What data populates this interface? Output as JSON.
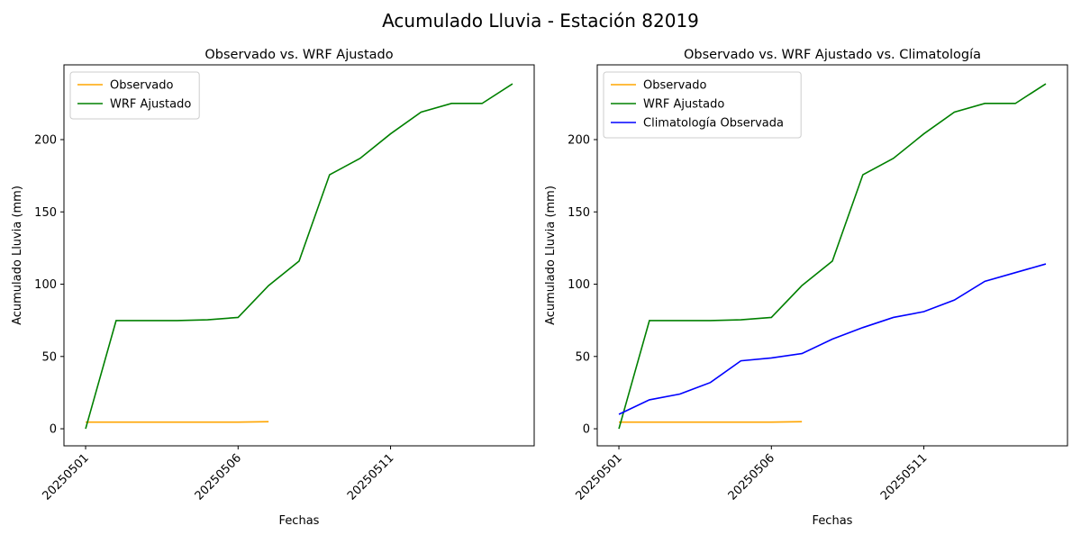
{
  "title": "Acumulado Lluvia - Estación 82019",
  "chart_data": [
    {
      "type": "line",
      "title": "Observado vs. WRF Ajustado",
      "xlabel": "Fechas",
      "ylabel": "Acumulado Lluvia (mm)",
      "categories": [
        "20250501",
        null,
        null,
        null,
        null,
        "20250506",
        null,
        null,
        null,
        null,
        "20250511",
        null,
        null,
        null,
        null
      ],
      "series": [
        {
          "name": "Observado",
          "color": "orange",
          "values": [
            4.6,
            4.6,
            4.6,
            4.6,
            4.6,
            4.6,
            4.9,
            null,
            null,
            null,
            null,
            null,
            null,
            null,
            null
          ]
        },
        {
          "name": "WRF Ajustado",
          "color": "green",
          "values": [
            0,
            74.8,
            74.8,
            74.8,
            75.4,
            77,
            99,
            116,
            175.7,
            187,
            204,
            219,
            225,
            225,
            238.6
          ]
        }
      ],
      "ylim": [
        -11.8,
        251.7
      ],
      "yticks": [
        0,
        50,
        100,
        150,
        200
      ],
      "legend": "upper left"
    },
    {
      "type": "line",
      "title": "Observado vs. WRF Ajustado vs. Climatología",
      "xlabel": "Fechas",
      "ylabel": "Acumulado Lluvia (mm)",
      "categories": [
        "20250501",
        null,
        null,
        null,
        null,
        "20250506",
        null,
        null,
        null,
        null,
        "20250511",
        null,
        null,
        null,
        null
      ],
      "series": [
        {
          "name": "Observado",
          "color": "orange",
          "values": [
            4.6,
            4.6,
            4.6,
            4.6,
            4.6,
            4.6,
            4.9,
            null,
            null,
            null,
            null,
            null,
            null,
            null,
            null
          ]
        },
        {
          "name": "WRF Ajustado",
          "color": "green",
          "values": [
            0,
            74.8,
            74.8,
            74.8,
            75.4,
            77,
            99,
            116,
            175.7,
            187,
            204,
            219,
            225,
            225,
            238.6
          ]
        },
        {
          "name": "Climatología Observada",
          "color": "blue",
          "values": [
            10,
            20,
            24,
            32,
            47,
            49,
            52,
            62,
            70,
            77,
            81,
            89,
            102,
            108,
            114
          ]
        }
      ],
      "ylim": [
        -11.8,
        251.7
      ],
      "yticks": [
        0,
        50,
        100,
        150,
        200
      ],
      "legend": "upper left"
    }
  ]
}
